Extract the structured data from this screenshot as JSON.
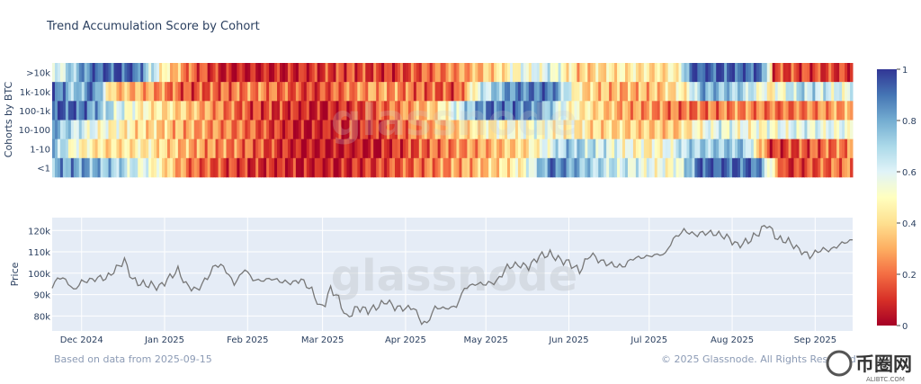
{
  "title": "Trend Accumulation Score by Cohort",
  "footer": {
    "left": "Based on data from 2025-09-15",
    "right": "© 2025 Glassnode. All Rights Reserved"
  },
  "watermark": "glassnode",
  "corner_logo": {
    "name": "币圈网",
    "url": "ALIBTC.COM"
  },
  "chart_data": [
    {
      "type": "heatmap",
      "ylabel": "Cohorts by BTC",
      "cohorts": [
        ">10k",
        "1k-10k",
        "100-1k",
        "10-100",
        "1-10",
        "<1"
      ],
      "x_ticks": [
        "Dec 2024",
        "Jan 2025",
        "Feb 2025",
        "Mar 2025",
        "Apr 2025",
        "May 2025",
        "Jun 2025",
        "Jul 2025",
        "Aug 2025",
        "Sep 2025"
      ],
      "x_range": [
        "2024-11-20",
        "2025-09-15"
      ],
      "colorscale": "RdYlBu",
      "zlim": [
        0,
        1
      ],
      "colorbar_ticks": [
        "0",
        "0.2",
        "0.4",
        "0.6",
        "0.8",
        "1"
      ],
      "series": [
        {
          "name": ">10k",
          "knots": [
            [
              "2024-11-20",
              0.55
            ],
            [
              "2024-11-28",
              0.75
            ],
            [
              "2024-12-05",
              0.92
            ],
            [
              "2024-12-20",
              0.95
            ],
            [
              "2024-12-28",
              0.6
            ],
            [
              "2025-01-02",
              0.4
            ],
            [
              "2025-01-10",
              0.2
            ],
            [
              "2025-01-25",
              0.05
            ],
            [
              "2025-02-20",
              0.08
            ],
            [
              "2025-03-10",
              0.15
            ],
            [
              "2025-03-25",
              0.1
            ],
            [
              "2025-04-10",
              0.2
            ],
            [
              "2025-04-25",
              0.3
            ],
            [
              "2025-05-05",
              0.4
            ],
            [
              "2025-05-15",
              0.55
            ],
            [
              "2025-05-25",
              0.6
            ],
            [
              "2025-06-05",
              0.35
            ],
            [
              "2025-06-20",
              0.45
            ],
            [
              "2025-07-05",
              0.4
            ],
            [
              "2025-07-12",
              0.5
            ],
            [
              "2025-07-16",
              0.95
            ],
            [
              "2025-08-05",
              0.93
            ],
            [
              "2025-08-12",
              0.9
            ],
            [
              "2025-08-16",
              0.15
            ],
            [
              "2025-09-15",
              0.12
            ]
          ]
        },
        {
          "name": "1k-10k",
          "knots": [
            [
              "2024-11-20",
              0.95
            ],
            [
              "2024-11-28",
              0.7
            ],
            [
              "2024-12-05",
              0.92
            ],
            [
              "2024-12-12",
              0.35
            ],
            [
              "2024-12-25",
              0.3
            ],
            [
              "2025-01-10",
              0.15
            ],
            [
              "2025-02-05",
              0.25
            ],
            [
              "2025-02-25",
              0.12
            ],
            [
              "2025-03-20",
              0.3
            ],
            [
              "2025-04-05",
              0.2
            ],
            [
              "2025-04-20",
              0.15
            ],
            [
              "2025-04-28",
              0.6
            ],
            [
              "2025-05-10",
              0.85
            ],
            [
              "2025-05-25",
              0.9
            ],
            [
              "2025-06-05",
              0.4
            ],
            [
              "2025-06-20",
              0.3
            ],
            [
              "2025-07-05",
              0.35
            ],
            [
              "2025-07-15",
              0.5
            ],
            [
              "2025-07-20",
              0.8
            ],
            [
              "2025-08-05",
              0.7
            ],
            [
              "2025-08-15",
              0.45
            ],
            [
              "2025-08-25",
              0.7
            ],
            [
              "2025-09-15",
              0.55
            ]
          ]
        },
        {
          "name": "100-1k",
          "knots": [
            [
              "2024-11-20",
              0.95
            ],
            [
              "2024-12-01",
              0.9
            ],
            [
              "2024-12-10",
              0.7
            ],
            [
              "2024-12-20",
              0.5
            ],
            [
              "2025-01-10",
              0.35
            ],
            [
              "2025-02-01",
              0.15
            ],
            [
              "2025-03-01",
              0.05
            ],
            [
              "2025-03-25",
              0.2
            ],
            [
              "2025-04-10",
              0.35
            ],
            [
              "2025-05-01",
              0.9
            ],
            [
              "2025-05-20",
              0.85
            ],
            [
              "2025-06-01",
              0.5
            ],
            [
              "2025-06-20",
              0.3
            ],
            [
              "2025-07-15",
              0.2
            ],
            [
              "2025-08-05",
              0.25
            ],
            [
              "2025-08-20",
              0.2
            ],
            [
              "2025-09-15",
              0.3
            ]
          ]
        },
        {
          "name": "10-100",
          "knots": [
            [
              "2024-11-20",
              0.8
            ],
            [
              "2024-11-28",
              0.65
            ],
            [
              "2024-12-10",
              0.5
            ],
            [
              "2024-12-25",
              0.4
            ],
            [
              "2025-01-10",
              0.3
            ],
            [
              "2025-02-01",
              0.2
            ],
            [
              "2025-02-20",
              0.05
            ],
            [
              "2025-03-20",
              0.1
            ],
            [
              "2025-04-10",
              0.3
            ],
            [
              "2025-05-01",
              0.45
            ],
            [
              "2025-05-20",
              0.55
            ],
            [
              "2025-06-10",
              0.4
            ],
            [
              "2025-07-10",
              0.35
            ],
            [
              "2025-07-25",
              0.6
            ],
            [
              "2025-08-10",
              0.5
            ],
            [
              "2025-08-25",
              0.6
            ],
            [
              "2025-09-15",
              0.55
            ]
          ]
        },
        {
          "name": "1-10",
          "knots": [
            [
              "2024-11-20",
              0.8
            ],
            [
              "2024-11-28",
              0.5
            ],
            [
              "2024-12-10",
              0.4
            ],
            [
              "2024-12-25",
              0.45
            ],
            [
              "2025-01-10",
              0.3
            ],
            [
              "2025-02-01",
              0.2
            ],
            [
              "2025-02-20",
              0.05
            ],
            [
              "2025-03-20",
              0.05
            ],
            [
              "2025-04-10",
              0.2
            ],
            [
              "2025-05-01",
              0.3
            ],
            [
              "2025-05-15",
              0.4
            ],
            [
              "2025-06-01",
              0.75
            ],
            [
              "2025-06-15",
              0.6
            ],
            [
              "2025-07-01",
              0.45
            ],
            [
              "2025-07-15",
              0.7
            ],
            [
              "2025-08-05",
              0.75
            ],
            [
              "2025-08-15",
              0.1
            ],
            [
              "2025-09-15",
              0.25
            ]
          ]
        },
        {
          "name": "<1",
          "knots": [
            [
              "2024-11-20",
              0.8
            ],
            [
              "2024-12-01",
              0.82
            ],
            [
              "2024-12-15",
              0.7
            ],
            [
              "2024-12-28",
              0.5
            ],
            [
              "2025-01-10",
              0.2
            ],
            [
              "2025-02-01",
              0.1
            ],
            [
              "2025-03-01",
              0.05
            ],
            [
              "2025-03-25",
              0.15
            ],
            [
              "2025-04-15",
              0.25
            ],
            [
              "2025-05-01",
              0.35
            ],
            [
              "2025-05-15",
              0.5
            ],
            [
              "2025-05-25",
              0.9
            ],
            [
              "2025-06-10",
              0.7
            ],
            [
              "2025-06-25",
              0.6
            ],
            [
              "2025-07-10",
              0.5
            ],
            [
              "2025-07-20",
              0.95
            ],
            [
              "2025-08-10",
              0.9
            ],
            [
              "2025-08-20",
              0.1
            ],
            [
              "2025-09-15",
              0.25
            ]
          ]
        }
      ]
    },
    {
      "type": "line",
      "ylabel": "Price",
      "ylim": [
        73000,
        126000
      ],
      "y_ticks": [
        80000,
        90000,
        100000,
        110000,
        120000
      ],
      "y_tick_labels": [
        "80k",
        "90k",
        "100k",
        "110k",
        "120k"
      ],
      "x_range": [
        "2024-11-20",
        "2025-09-15"
      ],
      "x_ticks": [
        "Dec 2024",
        "Jan 2025",
        "Feb 2025",
        "Mar 2025",
        "Apr 2025",
        "May 2025",
        "Jun 2025",
        "Jul 2025",
        "Aug 2025",
        "Sep 2025"
      ],
      "series": [
        {
          "name": "BTC",
          "x": [
            "2024-11-20",
            "2024-11-22",
            "2024-11-25",
            "2024-11-28",
            "2024-12-01",
            "2024-12-05",
            "2024-12-08",
            "2024-12-10",
            "2024-12-13",
            "2024-12-17",
            "2024-12-20",
            "2024-12-23",
            "2024-12-27",
            "2024-12-30",
            "2025-01-02",
            "2025-01-06",
            "2025-01-09",
            "2025-01-13",
            "2025-01-17",
            "2025-01-20",
            "2025-01-23",
            "2025-01-27",
            "2025-01-31",
            "2025-02-03",
            "2025-02-06",
            "2025-02-10",
            "2025-02-14",
            "2025-02-18",
            "2025-02-21",
            "2025-02-25",
            "2025-02-28",
            "2025-03-02",
            "2025-03-04",
            "2025-03-07",
            "2025-03-10",
            "2025-03-14",
            "2025-03-18",
            "2025-03-21",
            "2025-03-25",
            "2025-03-28",
            "2025-04-01",
            "2025-04-04",
            "2025-04-07",
            "2025-04-09",
            "2025-04-12",
            "2025-04-16",
            "2025-04-20",
            "2025-04-23",
            "2025-04-27",
            "2025-05-01",
            "2025-05-05",
            "2025-05-09",
            "2025-05-13",
            "2025-05-17",
            "2025-05-21",
            "2025-05-25",
            "2025-05-29",
            "2025-06-01",
            "2025-06-05",
            "2025-06-09",
            "2025-06-13",
            "2025-06-17",
            "2025-06-21",
            "2025-06-25",
            "2025-06-29",
            "2025-07-03",
            "2025-07-07",
            "2025-07-10",
            "2025-07-14",
            "2025-07-18",
            "2025-07-22",
            "2025-07-26",
            "2025-07-30",
            "2025-08-03",
            "2025-08-07",
            "2025-08-11",
            "2025-08-14",
            "2025-08-18",
            "2025-08-22",
            "2025-08-26",
            "2025-08-30",
            "2025-09-03",
            "2025-09-07",
            "2025-09-11",
            "2025-09-15"
          ],
          "y": [
            93000,
            98000,
            97000,
            92000,
            96000,
            97000,
            98000,
            97500,
            101000,
            106000,
            97000,
            95000,
            94500,
            93500,
            97000,
            101500,
            94500,
            92000,
            98000,
            104000,
            103000,
            95000,
            102000,
            97000,
            96500,
            97500,
            96000,
            95500,
            97000,
            92000,
            84000,
            86000,
            93000,
            88000,
            79000,
            84000,
            82500,
            84000,
            87000,
            84000,
            83500,
            84000,
            77000,
            76500,
            84000,
            83500,
            84500,
            93000,
            95000,
            95000,
            96000,
            103000,
            104000,
            103000,
            108000,
            109000,
            106000,
            105000,
            101000,
            109000,
            105500,
            104000,
            103000,
            107000,
            107500,
            108500,
            109000,
            116000,
            120000,
            118000,
            119000,
            118500,
            117000,
            113000,
            115000,
            119000,
            123000,
            116000,
            115000,
            111000,
            108000,
            111000,
            111000,
            114000,
            115500
          ]
        }
      ]
    }
  ]
}
